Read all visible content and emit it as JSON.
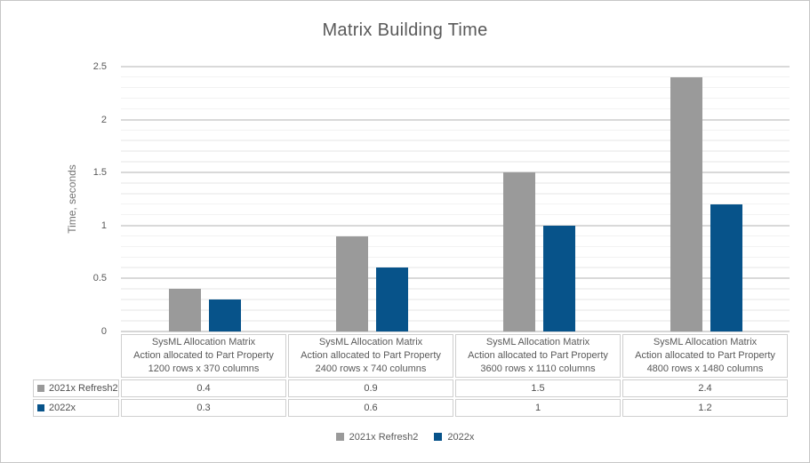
{
  "chart_data": {
    "type": "bar",
    "title": "Matrix Building Time",
    "xlabel": "",
    "ylabel": "Time, seconds",
    "ylim": [
      0,
      2.5
    ],
    "ytick_major_step": 0.5,
    "ytick_minor_step": 0.1,
    "yticks": [
      "0",
      "0.5",
      "1",
      "1.5",
      "2",
      "2.5"
    ],
    "grid": true,
    "legend_position": "bottom",
    "categories": [
      [
        "SysML Allocation Matrix",
        "Action allocated to Part Property",
        "1200 rows x 370 columns"
      ],
      [
        "SysML Allocation Matrix",
        "Action allocated to Part Property",
        "2400 rows x 740 columns"
      ],
      [
        "SysML Allocation Matrix",
        "Action allocated to Part Property",
        "3600 rows x 1110 columns"
      ],
      [
        "SysML Allocation Matrix",
        "Action allocated to Part Property",
        "4800 rows x 1480 columns"
      ]
    ],
    "series": [
      {
        "name": "2021x Refresh2",
        "color": "#9a9a9a",
        "values": [
          0.4,
          0.9,
          1.5,
          2.4
        ]
      },
      {
        "name": "2022x",
        "color": "#07538a",
        "values": [
          0.3,
          0.6,
          1,
          1.2
        ]
      }
    ],
    "data_table_shown": true
  },
  "colors": {
    "title_text": "#595959",
    "axis_text": "#595959",
    "grid_major": "#d9d9d9",
    "grid_minor": "#f2f2f2",
    "table_border": "#cfcfcf",
    "outer_border": "#c7c7c7"
  }
}
